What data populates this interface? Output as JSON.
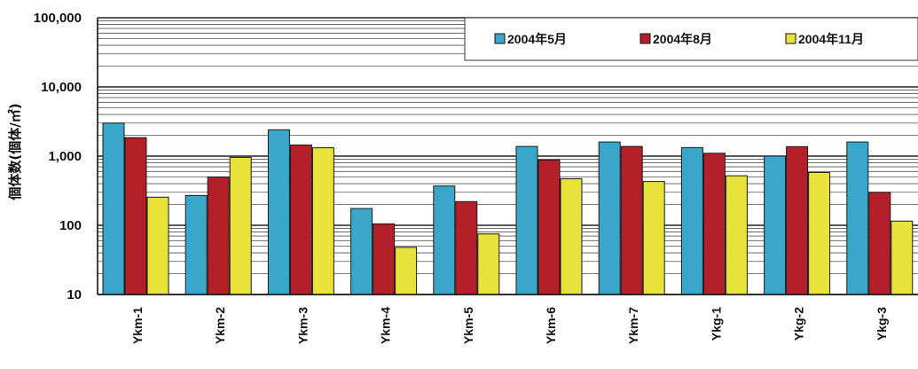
{
  "chart_data": {
    "type": "bar",
    "title": "",
    "xlabel": "",
    "ylabel": "個体数(個体/㎡)",
    "yscale": "log",
    "ylim": [
      10,
      100000
    ],
    "yticks": [
      "10",
      "100",
      "1,000",
      "10,000",
      "100,000"
    ],
    "grid": true,
    "legend_position": "top-right",
    "categories": [
      "Ykm-1",
      "Ykm-2",
      "Ykm-3",
      "Ykm-4",
      "Ykm-5",
      "Ykm-6",
      "Ykm-7",
      "Ykg-1",
      "Ykg-2",
      "Ykg-3"
    ],
    "series": [
      {
        "name": "2004年5月",
        "color": "#3aa6c9",
        "values": [
          3000,
          270,
          2400,
          175,
          370,
          1380,
          1600,
          1330,
          1000,
          1600
        ]
      },
      {
        "name": "2004年8月",
        "color": "#b3202a",
        "values": [
          1850,
          500,
          1450,
          105,
          220,
          880,
          1380,
          1100,
          1370,
          300
        ]
      },
      {
        "name": "2004年11月",
        "color": "#e8e23a",
        "values": [
          255,
          960,
          1320,
          48,
          75,
          470,
          430,
          520,
          580,
          115
        ]
      }
    ]
  }
}
